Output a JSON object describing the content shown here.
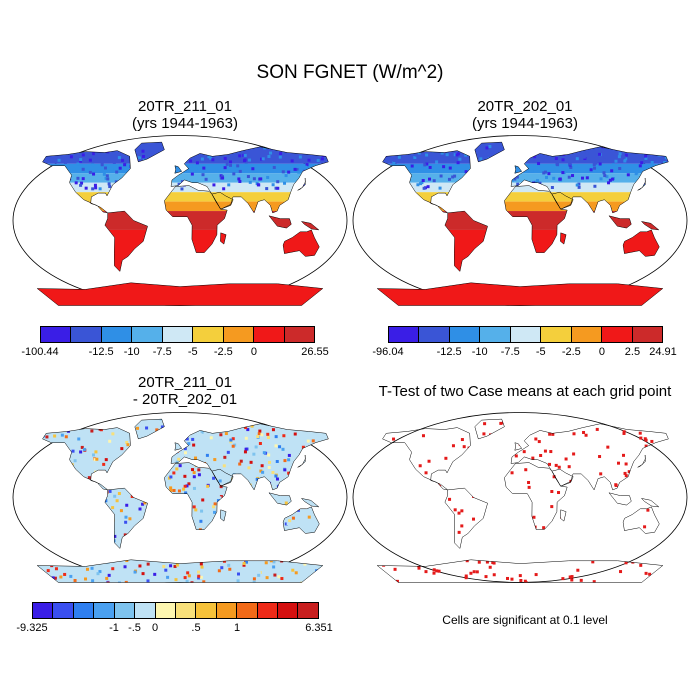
{
  "title": "SON FGNET (W/m^2)",
  "panels": [
    {
      "title_line1": "20TR_211_01",
      "title_line2": "(yrs 1944-1963)",
      "colorbar_labels": [
        "-100.44",
        "-12.5",
        "-10",
        "-7.5",
        "-5",
        "-2.5",
        "0",
        "26.55"
      ],
      "colors": [
        "#3a1ee6",
        "#3a55d6",
        "#2f8fe6",
        "#55b0ea",
        "#cfe8f5",
        "#f4cf3c",
        "#f59a20",
        "#f01818",
        "#cc2a2a"
      ]
    },
    {
      "title_line1": "20TR_202_01",
      "title_line2": "(yrs 1944-1963)",
      "colorbar_labels": [
        "-96.04",
        "-12.5",
        "-10",
        "-7.5",
        "-5",
        "-2.5",
        "0",
        "2.5",
        "24.91"
      ],
      "colors": [
        "#3a1ee6",
        "#3a55d6",
        "#2f8fe6",
        "#55b0ea",
        "#cfe8f5",
        "#f4cf3c",
        "#f59a20",
        "#f01818",
        "#cc2a2a"
      ]
    },
    {
      "title_line1": "20TR_211_01",
      "title_line2": "- 20TR_202_01",
      "colorbar_labels": [
        "-9.325",
        "-1",
        "-.5",
        "0",
        ".5",
        "1",
        "6.351"
      ],
      "colors": [
        "#3a1ee6",
        "#3a4ff0",
        "#2f7ff0",
        "#4aa0f0",
        "#7ec3ee",
        "#bfe2f5",
        "#fdf6b0",
        "#f8e07a",
        "#f6c23a",
        "#f59a20",
        "#f26a18",
        "#ee2a18",
        "#d40f0f",
        "#c81e1e"
      ]
    }
  ],
  "ttest": {
    "title": "T-Test of two Case means at each grid point",
    "note": "Cells are significant at 0.1 level",
    "color": "#e41a1a"
  }
}
